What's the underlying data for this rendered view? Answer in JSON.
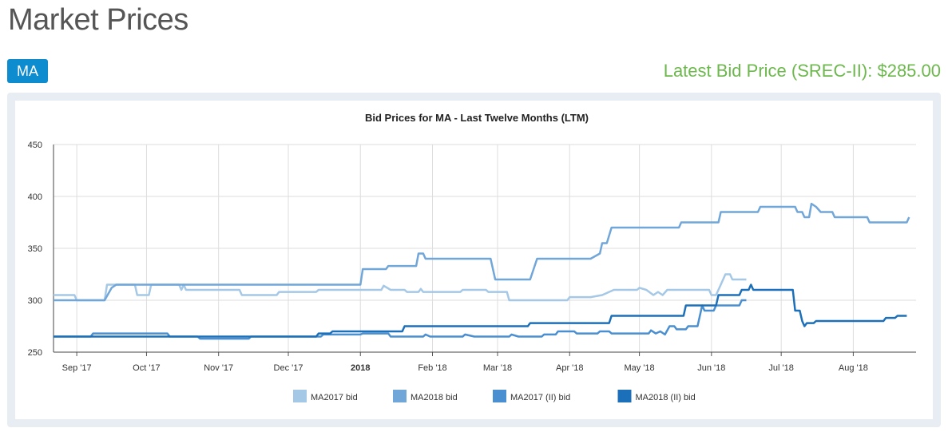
{
  "header": {
    "title": "Market Prices",
    "state_button": "MA",
    "latest_label": "Latest Bid Price (SREC-II):",
    "latest_value": "$285.00"
  },
  "colors": {
    "title": "#555555",
    "button_bg": "#0e8cd0",
    "latest_price": "#6cb84c",
    "panel_bg": "#e8edf4"
  },
  "chart_data": {
    "type": "line",
    "title": "Bid Prices for MA - Last Twelve Months (LTM)",
    "xlabel": "",
    "ylabel": "",
    "ylim": [
      250,
      450
    ],
    "yticks": [
      250,
      300,
      350,
      400,
      450
    ],
    "xlim": [
      "2017-08-22",
      "2018-08-28"
    ],
    "xticks": [
      {
        "date": "2017-09-01",
        "label": "Sep '17"
      },
      {
        "date": "2017-10-01",
        "label": "Oct '17"
      },
      {
        "date": "2017-11-01",
        "label": "Nov '17"
      },
      {
        "date": "2017-12-01",
        "label": "Dec '17"
      },
      {
        "date": "2018-01-01",
        "label": "2018",
        "bold": true
      },
      {
        "date": "2018-02-01",
        "label": "Feb '18"
      },
      {
        "date": "2018-03-01",
        "label": "Mar '18"
      },
      {
        "date": "2018-04-01",
        "label": "Apr '18"
      },
      {
        "date": "2018-05-01",
        "label": "May '18"
      },
      {
        "date": "2018-06-01",
        "label": "Jun '18"
      },
      {
        "date": "2018-07-01",
        "label": "Jul '18"
      },
      {
        "date": "2018-08-01",
        "label": "Aug '18"
      }
    ],
    "grid": true,
    "legend_position": "bottom",
    "series": [
      {
        "name": "MA2017 bid",
        "color": "#a4c8e6",
        "points": [
          [
            "2017-08-22",
            305
          ],
          [
            "2017-08-31",
            305
          ],
          [
            "2017-09-01",
            300
          ],
          [
            "2017-09-13",
            300
          ],
          [
            "2017-09-14",
            315
          ],
          [
            "2017-09-26",
            315
          ],
          [
            "2017-09-27",
            305
          ],
          [
            "2017-10-02",
            305
          ],
          [
            "2017-10-03",
            315
          ],
          [
            "2017-10-15",
            315
          ],
          [
            "2017-10-16",
            310
          ],
          [
            "2017-10-17",
            315
          ],
          [
            "2017-10-18",
            310
          ],
          [
            "2017-11-10",
            310
          ],
          [
            "2017-11-11",
            305
          ],
          [
            "2017-11-26",
            305
          ],
          [
            "2017-11-27",
            308
          ],
          [
            "2017-12-13",
            308
          ],
          [
            "2017-12-14",
            310
          ],
          [
            "2018-01-10",
            310
          ],
          [
            "2018-01-11",
            314
          ],
          [
            "2018-01-14",
            310
          ],
          [
            "2018-01-20",
            310
          ],
          [
            "2018-01-21",
            308
          ],
          [
            "2018-01-26",
            308
          ],
          [
            "2018-01-27",
            311
          ],
          [
            "2018-01-28",
            308
          ],
          [
            "2018-02-13",
            308
          ],
          [
            "2018-02-14",
            310
          ],
          [
            "2018-02-24",
            310
          ],
          [
            "2018-02-25",
            308
          ],
          [
            "2018-03-05",
            308
          ],
          [
            "2018-03-06",
            300
          ],
          [
            "2018-03-31",
            300
          ],
          [
            "2018-04-01",
            303
          ],
          [
            "2018-04-10",
            303
          ],
          [
            "2018-04-15",
            305
          ],
          [
            "2018-04-20",
            310
          ],
          [
            "2018-04-30",
            310
          ],
          [
            "2018-05-01",
            312
          ],
          [
            "2018-05-04",
            310
          ],
          [
            "2018-05-07",
            305
          ],
          [
            "2018-05-09",
            308
          ],
          [
            "2018-05-11",
            305
          ],
          [
            "2018-05-13",
            310
          ],
          [
            "2018-05-31",
            310
          ],
          [
            "2018-06-01",
            305
          ],
          [
            "2018-06-03",
            305
          ],
          [
            "2018-06-05",
            315
          ],
          [
            "2018-06-07",
            325
          ],
          [
            "2018-06-09",
            325
          ],
          [
            "2018-06-10",
            320
          ],
          [
            "2018-06-16",
            320
          ]
        ]
      },
      {
        "name": "MA2018 bid",
        "color": "#71a6d9",
        "points": [
          [
            "2017-08-22",
            300
          ],
          [
            "2017-09-13",
            300
          ],
          [
            "2017-09-16",
            312
          ],
          [
            "2017-09-18",
            315
          ],
          [
            "2018-01-01",
            315
          ],
          [
            "2018-01-02",
            330
          ],
          [
            "2018-01-12",
            330
          ],
          [
            "2018-01-13",
            333
          ],
          [
            "2018-01-25",
            333
          ],
          [
            "2018-01-26",
            345
          ],
          [
            "2018-01-28",
            345
          ],
          [
            "2018-01-29",
            340
          ],
          [
            "2018-02-26",
            340
          ],
          [
            "2018-02-28",
            320
          ],
          [
            "2018-03-15",
            320
          ],
          [
            "2018-03-18",
            340
          ],
          [
            "2018-04-10",
            340
          ],
          [
            "2018-04-14",
            345
          ],
          [
            "2018-04-15",
            355
          ],
          [
            "2018-04-17",
            355
          ],
          [
            "2018-04-19",
            370
          ],
          [
            "2018-05-18",
            370
          ],
          [
            "2018-05-19",
            375
          ],
          [
            "2018-06-04",
            375
          ],
          [
            "2018-06-05",
            385
          ],
          [
            "2018-06-21",
            385
          ],
          [
            "2018-06-22",
            390
          ],
          [
            "2018-07-07",
            390
          ],
          [
            "2018-07-08",
            385
          ],
          [
            "2018-07-10",
            385
          ],
          [
            "2018-07-11",
            380
          ],
          [
            "2018-07-13",
            380
          ],
          [
            "2018-07-14",
            393
          ],
          [
            "2018-07-16",
            390
          ],
          [
            "2018-07-18",
            385
          ],
          [
            "2018-07-23",
            385
          ],
          [
            "2018-07-24",
            380
          ],
          [
            "2018-08-07",
            380
          ],
          [
            "2018-08-08",
            375
          ],
          [
            "2018-08-21",
            375
          ],
          [
            "2018-08-24",
            375
          ],
          [
            "2018-08-25",
            380
          ]
        ]
      },
      {
        "name": "MA2017 (II) bid",
        "color": "#4a8fd0",
        "points": [
          [
            "2017-08-22",
            265
          ],
          [
            "2017-09-07",
            265
          ],
          [
            "2017-09-08",
            268
          ],
          [
            "2017-10-10",
            268
          ],
          [
            "2017-10-11",
            265
          ],
          [
            "2017-10-23",
            265
          ],
          [
            "2017-10-24",
            263
          ],
          [
            "2017-11-14",
            263
          ],
          [
            "2017-11-15",
            265
          ],
          [
            "2017-12-15",
            265
          ],
          [
            "2017-12-16",
            267
          ],
          [
            "2018-01-01",
            267
          ],
          [
            "2018-01-02",
            268
          ],
          [
            "2018-01-13",
            268
          ],
          [
            "2018-01-14",
            265
          ],
          [
            "2018-01-28",
            265
          ],
          [
            "2018-01-29",
            267
          ],
          [
            "2018-01-31",
            265
          ],
          [
            "2018-02-14",
            265
          ],
          [
            "2018-02-15",
            267
          ],
          [
            "2018-02-19",
            265
          ],
          [
            "2018-03-06",
            265
          ],
          [
            "2018-03-07",
            267
          ],
          [
            "2018-03-10",
            265
          ],
          [
            "2018-03-20",
            265
          ],
          [
            "2018-03-21",
            267
          ],
          [
            "2018-03-26",
            267
          ],
          [
            "2018-03-27",
            270
          ],
          [
            "2018-04-03",
            270
          ],
          [
            "2018-04-04",
            268
          ],
          [
            "2018-04-13",
            268
          ],
          [
            "2018-04-14",
            270
          ],
          [
            "2018-04-18",
            270
          ],
          [
            "2018-04-19",
            268
          ],
          [
            "2018-05-05",
            268
          ],
          [
            "2018-05-06",
            271
          ],
          [
            "2018-05-08",
            268
          ],
          [
            "2018-05-10",
            270
          ],
          [
            "2018-05-12",
            267
          ],
          [
            "2018-05-14",
            275
          ],
          [
            "2018-05-16",
            275
          ],
          [
            "2018-05-17",
            272
          ],
          [
            "2018-05-21",
            272
          ],
          [
            "2018-05-22",
            275
          ],
          [
            "2018-05-26",
            275
          ],
          [
            "2018-05-28",
            295
          ],
          [
            "2018-05-29",
            290
          ],
          [
            "2018-06-02",
            290
          ],
          [
            "2018-06-03",
            295
          ],
          [
            "2018-06-13",
            295
          ],
          [
            "2018-06-14",
            300
          ],
          [
            "2018-06-16",
            300
          ]
        ]
      },
      {
        "name": "MA2018 (II) bid",
        "color": "#1c70b9",
        "points": [
          [
            "2017-08-22",
            265
          ],
          [
            "2017-12-13",
            265
          ],
          [
            "2017-12-14",
            268
          ],
          [
            "2017-12-19",
            268
          ],
          [
            "2017-12-20",
            270
          ],
          [
            "2018-01-19",
            270
          ],
          [
            "2018-01-20",
            275
          ],
          [
            "2018-03-14",
            275
          ],
          [
            "2018-03-15",
            278
          ],
          [
            "2018-04-18",
            278
          ],
          [
            "2018-04-19",
            285
          ],
          [
            "2018-05-20",
            285
          ],
          [
            "2018-05-21",
            295
          ],
          [
            "2018-06-03",
            295
          ],
          [
            "2018-06-04",
            305
          ],
          [
            "2018-06-13",
            305
          ],
          [
            "2018-06-14",
            310
          ],
          [
            "2018-06-17",
            310
          ],
          [
            "2018-06-18",
            315
          ],
          [
            "2018-06-19",
            310
          ],
          [
            "2018-07-06",
            310
          ],
          [
            "2018-07-07",
            290
          ],
          [
            "2018-07-09",
            290
          ],
          [
            "2018-07-10",
            280
          ],
          [
            "2018-07-11",
            275
          ],
          [
            "2018-07-12",
            278
          ],
          [
            "2018-07-15",
            278
          ],
          [
            "2018-07-16",
            280
          ],
          [
            "2018-08-14",
            280
          ],
          [
            "2018-08-15",
            283
          ],
          [
            "2018-08-19",
            283
          ],
          [
            "2018-08-20",
            285
          ],
          [
            "2018-08-24",
            285
          ]
        ]
      }
    ]
  }
}
